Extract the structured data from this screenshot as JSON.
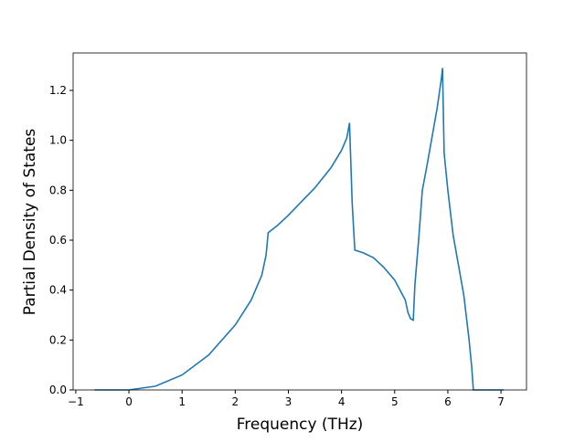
{
  "chart_data": {
    "type": "line",
    "x_label": "Frequency (THz)",
    "y_label": "Partial Density of States",
    "xlim": [
      -1.05,
      7.48
    ],
    "ylim": [
      0,
      1.35
    ],
    "xticks": [
      {
        "value": -1,
        "label": "−1"
      },
      0,
      1,
      2,
      3,
      4,
      5,
      6,
      7
    ],
    "yticks": [
      {
        "value": 0,
        "label": "0.0"
      },
      0.2,
      0.4,
      0.6,
      0.8,
      {
        "value": 1,
        "label": "1.0"
      },
      1.2
    ],
    "series": [
      {
        "color": "#1f77b4",
        "x": [
          -0.65,
          0,
          0.5,
          1,
          1.5,
          2,
          2.3,
          2.5,
          2.58,
          2.62,
          2.8,
          3,
          3.5,
          3.8,
          4,
          4.1,
          4.15,
          4.2,
          4.25,
          4.4,
          4.6,
          4.8,
          5,
          5.1,
          5.2,
          5.25,
          5.3,
          5.35,
          5.38,
          5.45,
          5.52,
          5.6,
          5.8,
          5.88,
          5.9,
          5.93,
          6.0,
          6.1,
          6.3,
          6.4,
          6.45,
          6.48,
          7.05
        ],
        "values": [
          0,
          0,
          0.015,
          0.06,
          0.14,
          0.26,
          0.36,
          0.46,
          0.54,
          0.63,
          0.66,
          0.7,
          0.81,
          0.89,
          0.96,
          1.01,
          1.07,
          0.75,
          0.56,
          0.55,
          0.53,
          0.49,
          0.44,
          0.4,
          0.36,
          0.31,
          0.285,
          0.28,
          0.42,
          0.6,
          0.8,
          0.89,
          1.13,
          1.25,
          1.29,
          0.95,
          0.8,
          0.62,
          0.38,
          0.2,
          0.09,
          0,
          0
        ]
      }
    ]
  }
}
